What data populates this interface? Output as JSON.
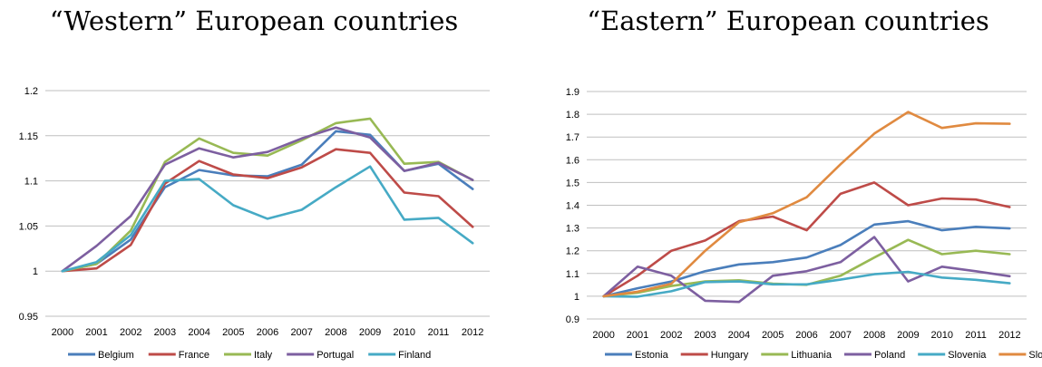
{
  "chart_data": [
    {
      "type": "line",
      "title": "“Western” European countries",
      "x": [
        "2000",
        "2001",
        "2002",
        "2003",
        "2004",
        "2005",
        "2006",
        "2007",
        "2008",
        "2009",
        "2010",
        "2011",
        "2012"
      ],
      "ylim": [
        0.95,
        1.2
      ],
      "yticks": [
        "0.95",
        "1",
        "1.05",
        "1.1",
        "1.15",
        "1.2"
      ],
      "ytick_values": [
        0.95,
        1.0,
        1.05,
        1.1,
        1.15,
        1.2
      ],
      "grid": true,
      "legend": "bottom",
      "series": [
        {
          "name": "Belgium",
          "color": "#4a7ebb",
          "values": [
            1.0,
            1.008,
            1.035,
            1.093,
            1.112,
            1.106,
            1.105,
            1.118,
            1.155,
            1.151,
            1.111,
            1.119,
            1.091
          ]
        },
        {
          "name": "France",
          "color": "#be4b48",
          "values": [
            1.0,
            1.003,
            1.029,
            1.097,
            1.122,
            1.107,
            1.103,
            1.115,
            1.135,
            1.131,
            1.087,
            1.083,
            1.049
          ]
        },
        {
          "name": "Italy",
          "color": "#98b954",
          "values": [
            1.0,
            1.008,
            1.045,
            1.121,
            1.147,
            1.131,
            1.128,
            1.145,
            1.164,
            1.169,
            1.119,
            1.121,
            1.101
          ]
        },
        {
          "name": "Portugal",
          "color": "#7d5fa0",
          "values": [
            1.0,
            1.028,
            1.061,
            1.118,
            1.136,
            1.126,
            1.132,
            1.147,
            1.159,
            1.148,
            1.111,
            1.12,
            1.101
          ]
        },
        {
          "name": "Finland",
          "color": "#46aac5",
          "values": [
            1.0,
            1.01,
            1.04,
            1.1,
            1.102,
            1.073,
            1.058,
            1.068,
            1.093,
            1.116,
            1.057,
            1.059,
            1.031
          ]
        }
      ]
    },
    {
      "type": "line",
      "title": "“Eastern” European countries",
      "x": [
        "2000",
        "2001",
        "2002",
        "2003",
        "2004",
        "2005",
        "2006",
        "2007",
        "2008",
        "2009",
        "2010",
        "2011",
        "2012"
      ],
      "ylim": [
        0.9,
        1.9
      ],
      "yticks": [
        "0.9",
        "1",
        "1.1",
        "1.2",
        "1.3",
        "1.4",
        "1.5",
        "1.6",
        "1.7",
        "1.8",
        "1.9"
      ],
      "ytick_values": [
        0.9,
        1.0,
        1.1,
        1.2,
        1.3,
        1.4,
        1.5,
        1.6,
        1.7,
        1.8,
        1.9
      ],
      "grid": true,
      "legend": "bottom",
      "series": [
        {
          "name": "Estonia",
          "color": "#4a7ebb",
          "values": [
            1.0,
            1.035,
            1.065,
            1.11,
            1.14,
            1.15,
            1.17,
            1.225,
            1.315,
            1.33,
            1.29,
            1.305,
            1.298
          ]
        },
        {
          "name": "Hungary",
          "color": "#be4b48",
          "values": [
            1.0,
            1.09,
            1.2,
            1.245,
            1.33,
            1.35,
            1.29,
            1.45,
            1.5,
            1.4,
            1.43,
            1.425,
            1.392
          ]
        },
        {
          "name": "Lithuania",
          "color": "#98b954",
          "values": [
            1.0,
            1.015,
            1.045,
            1.065,
            1.07,
            1.055,
            1.05,
            1.09,
            1.17,
            1.248,
            1.185,
            1.2,
            1.185
          ]
        },
        {
          "name": "Poland",
          "color": "#7d5fa0",
          "values": [
            1.0,
            1.13,
            1.09,
            0.98,
            0.975,
            1.09,
            1.11,
            1.15,
            1.26,
            1.065,
            1.13,
            1.11,
            1.088
          ]
        },
        {
          "name": "Slovenia",
          "color": "#46aac5",
          "values": [
            1.0,
            0.998,
            1.022,
            1.062,
            1.065,
            1.052,
            1.052,
            1.073,
            1.097,
            1.107,
            1.082,
            1.072,
            1.057
          ]
        },
        {
          "name": "Slovakia",
          "color": "#e08a40",
          "values": [
            1.0,
            1.02,
            1.055,
            1.2,
            1.325,
            1.365,
            1.435,
            1.58,
            1.715,
            1.81,
            1.74,
            1.76,
            1.758
          ]
        }
      ]
    }
  ]
}
